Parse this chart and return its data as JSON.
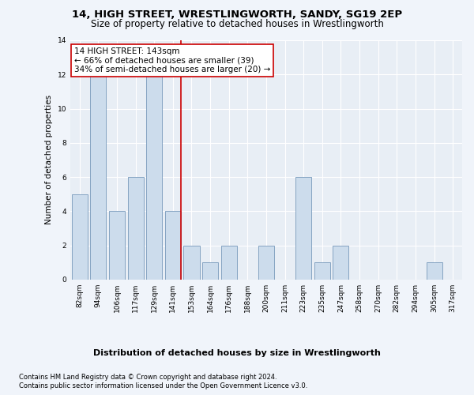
{
  "title": "14, HIGH STREET, WRESTLINGWORTH, SANDY, SG19 2EP",
  "subtitle": "Size of property relative to detached houses in Wrestlingworth",
  "xlabel": "Distribution of detached houses by size in Wrestlingworth",
  "ylabel": "Number of detached properties",
  "categories": [
    "82sqm",
    "94sqm",
    "106sqm",
    "117sqm",
    "129sqm",
    "141sqm",
    "153sqm",
    "164sqm",
    "176sqm",
    "188sqm",
    "200sqm",
    "211sqm",
    "223sqm",
    "235sqm",
    "247sqm",
    "258sqm",
    "270sqm",
    "282sqm",
    "294sqm",
    "305sqm",
    "317sqm"
  ],
  "values": [
    5,
    12,
    4,
    6,
    12,
    4,
    2,
    1,
    2,
    0,
    2,
    0,
    6,
    1,
    2,
    0,
    0,
    0,
    0,
    1,
    0
  ],
  "bar_color": "#ccdcec",
  "bar_edge_color": "#7799bb",
  "highlight_line_color": "#cc0000",
  "annotation_text": "14 HIGH STREET: 143sqm\n← 66% of detached houses are smaller (39)\n34% of semi-detached houses are larger (20) →",
  "annotation_box_color": "#ffffff",
  "annotation_box_edge_color": "#cc0000",
  "ylim": [
    0,
    14
  ],
  "yticks": [
    0,
    2,
    4,
    6,
    8,
    10,
    12,
    14
  ],
  "fig_bg_color": "#f0f4fa",
  "plot_bg_color": "#e8eef5",
  "grid_color": "#ffffff",
  "footer_line1": "Contains HM Land Registry data © Crown copyright and database right 2024.",
  "footer_line2": "Contains public sector information licensed under the Open Government Licence v3.0.",
  "title_fontsize": 9.5,
  "subtitle_fontsize": 8.5,
  "xlabel_fontsize": 8,
  "ylabel_fontsize": 7.5,
  "tick_fontsize": 6.5,
  "annotation_fontsize": 7.5,
  "footer_fontsize": 6.0
}
